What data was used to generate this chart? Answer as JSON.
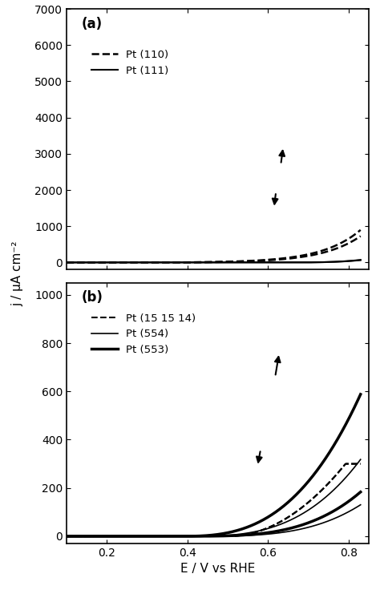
{
  "title_a": "(a)",
  "title_b": "(b)",
  "xlabel": "E / V vs RHE",
  "ylabel": "j / μA cm⁻²",
  "xlim": [
    0.1,
    0.85
  ],
  "ylim_a": [
    -200,
    7000
  ],
  "ylim_b": [
    -30,
    1050
  ],
  "xticks": [
    0.2,
    0.4,
    0.6,
    0.8
  ],
  "yticks_a": [
    0,
    1000,
    2000,
    3000,
    4000,
    5000,
    6000,
    7000
  ],
  "yticks_b": [
    0,
    200,
    400,
    600,
    800,
    1000
  ],
  "legend_a": [
    "Pt (110)",
    "Pt (111)"
  ],
  "legend_b": [
    "Pt (15 15 14)",
    "Pt (554)",
    "Pt (553)"
  ],
  "bg_color": "#ffffff",
  "line_color": "#000000"
}
